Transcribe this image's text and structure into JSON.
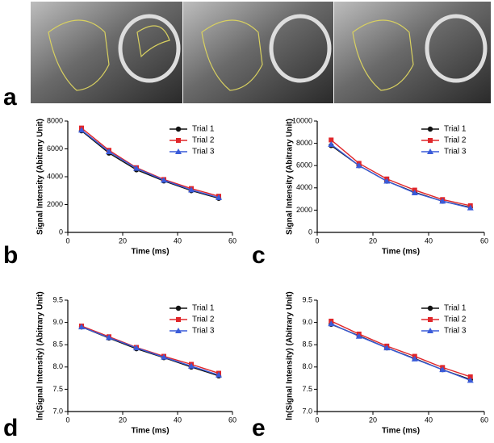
{
  "panel_labels": [
    "a",
    "b",
    "c",
    "d",
    "e"
  ],
  "chart_data": [
    {
      "type": "line",
      "xlabel": "Time (ms)",
      "ylabel": "Signal Intensity (Abitrary Unit)",
      "x": [
        5,
        15,
        25,
        35,
        45,
        55
      ],
      "xlim": [
        0,
        60
      ],
      "xticks": [
        0,
        20,
        40,
        60
      ],
      "ylim": [
        0,
        8000
      ],
      "yticks": [
        0,
        2000,
        4000,
        6000,
        8000
      ],
      "legend": "upper right",
      "series": [
        {
          "name": "Trial 1",
          "color": "#111111",
          "marker": "circle",
          "values": [
            7300,
            5700,
            4500,
            3700,
            3000,
            2450
          ]
        },
        {
          "name": "Trial 2",
          "color": "#e0262a",
          "marker": "square",
          "values": [
            7500,
            5900,
            4650,
            3800,
            3150,
            2600
          ]
        },
        {
          "name": "Trial 3",
          "color": "#3a5bd9",
          "marker": "triangle",
          "values": [
            7350,
            5800,
            4600,
            3750,
            3050,
            2500
          ]
        }
      ]
    },
    {
      "type": "line",
      "xlabel": "Time (ms)",
      "ylabel": "Signal Intensity (Abitrary Unit)",
      "x": [
        5,
        15,
        25,
        35,
        45,
        55
      ],
      "xlim": [
        0,
        60
      ],
      "xticks": [
        0,
        20,
        40,
        60
      ],
      "ylim": [
        0,
        10000
      ],
      "yticks": [
        0,
        2000,
        4000,
        6000,
        8000,
        10000
      ],
      "legend": "upper right",
      "series": [
        {
          "name": "Trial 1",
          "color": "#111111",
          "marker": "circle",
          "values": [
            7800,
            6000,
            4600,
            3600,
            2800,
            2250
          ]
        },
        {
          "name": "Trial 2",
          "color": "#e0262a",
          "marker": "square",
          "values": [
            8300,
            6200,
            4800,
            3800,
            2950,
            2400
          ]
        },
        {
          "name": "Trial 3",
          "color": "#3a5bd9",
          "marker": "triangle",
          "values": [
            7900,
            6000,
            4600,
            3550,
            2800,
            2200
          ]
        }
      ]
    },
    {
      "type": "line",
      "xlabel": "Time (ms)",
      "ylabel": "ln(Signal Intensity) (Abitrary Unit)",
      "x": [
        5,
        15,
        25,
        35,
        45,
        55
      ],
      "xlim": [
        0,
        60
      ],
      "xticks": [
        0,
        20,
        40,
        60
      ],
      "ylim": [
        7,
        9.5
      ],
      "yticks": [
        {
          "value": 7,
          "label": "7.0"
        },
        7.5,
        {
          "value": 8,
          "label": "8.0"
        },
        8.5,
        {
          "value": 9,
          "label": "9.0"
        },
        9.5
      ],
      "legend": "upper right",
      "series": [
        {
          "name": "Trial 1",
          "color": "#111111",
          "marker": "circle",
          "values": [
            8.9,
            8.65,
            8.41,
            8.21,
            8.0,
            7.8
          ]
        },
        {
          "name": "Trial 2",
          "color": "#e0262a",
          "marker": "square",
          "values": [
            8.92,
            8.68,
            8.44,
            8.24,
            8.06,
            7.86
          ]
        },
        {
          "name": "Trial 3",
          "color": "#3a5bd9",
          "marker": "triangle",
          "values": [
            8.9,
            8.66,
            8.43,
            8.22,
            8.02,
            7.82
          ]
        }
      ]
    },
    {
      "type": "line",
      "xlabel": "Time (ms)",
      "ylabel": "ln(Signal Intensity) (Abitrary Unit)",
      "x": [
        5,
        15,
        25,
        35,
        45,
        55
      ],
      "xlim": [
        0,
        60
      ],
      "xticks": [
        0,
        20,
        40,
        60
      ],
      "ylim": [
        7,
        9.5
      ],
      "yticks": [
        {
          "value": 7,
          "label": "7.0"
        },
        7.5,
        {
          "value": 8,
          "label": "8.0"
        },
        8.5,
        {
          "value": 9,
          "label": "9.0"
        },
        9.5
      ],
      "legend": "upper right",
      "series": [
        {
          "name": "Trial 1",
          "color": "#111111",
          "marker": "circle",
          "values": [
            8.96,
            8.7,
            8.43,
            8.19,
            7.94,
            7.72
          ]
        },
        {
          "name": "Trial 2",
          "color": "#e0262a",
          "marker": "square",
          "values": [
            9.03,
            8.74,
            8.47,
            8.24,
            7.99,
            7.78
          ]
        },
        {
          "name": "Trial 3",
          "color": "#3a5bd9",
          "marker": "triangle",
          "values": [
            8.97,
            8.69,
            8.43,
            8.18,
            7.94,
            7.7
          ]
        }
      ]
    }
  ]
}
